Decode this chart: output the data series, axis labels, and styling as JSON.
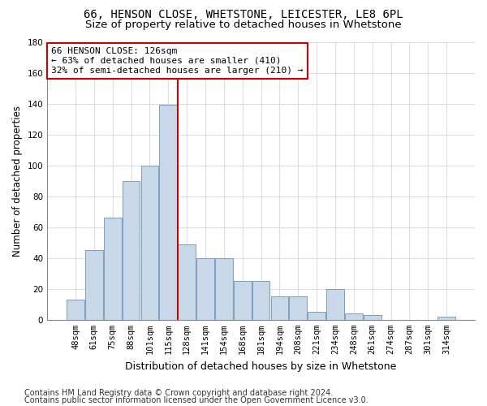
{
  "title_line1": "66, HENSON CLOSE, WHETSTONE, LEICESTER, LE8 6PL",
  "title_line2": "Size of property relative to detached houses in Whetstone",
  "xlabel": "Distribution of detached houses by size in Whetstone",
  "ylabel": "Number of detached properties",
  "categories": [
    "48sqm",
    "61sqm",
    "75sqm",
    "88sqm",
    "101sqm",
    "115sqm",
    "128sqm",
    "141sqm",
    "154sqm",
    "168sqm",
    "181sqm",
    "194sqm",
    "208sqm",
    "221sqm",
    "234sqm",
    "248sqm",
    "261sqm",
    "274sqm",
    "287sqm",
    "301sqm",
    "314sqm"
  ],
  "values": [
    13,
    45,
    66,
    90,
    100,
    139,
    49,
    40,
    40,
    25,
    25,
    15,
    15,
    5,
    20,
    4,
    3,
    0,
    0,
    0,
    2
  ],
  "bar_color": "#c8d8e8",
  "bar_edge_color": "#7a9fc0",
  "vline_x_idx": 6,
  "vline_color": "#cc0000",
  "annotation_text": "66 HENSON CLOSE: 126sqm\n← 63% of detached houses are smaller (410)\n32% of semi-detached houses are larger (210) →",
  "annotation_box_color": "#ffffff",
  "annotation_box_edge": "#cc0000",
  "ylim": [
    0,
    180
  ],
  "yticks": [
    0,
    20,
    40,
    60,
    80,
    100,
    120,
    140,
    160,
    180
  ],
  "footer_line1": "Contains HM Land Registry data © Crown copyright and database right 2024.",
  "footer_line2": "Contains public sector information licensed under the Open Government Licence v3.0.",
  "bg_color": "#ffffff",
  "grid_color": "#d0d8e0",
  "title1_fontsize": 10,
  "title2_fontsize": 9.5,
  "xlabel_fontsize": 9,
  "ylabel_fontsize": 8.5,
  "tick_fontsize": 7.5,
  "annot_fontsize": 8,
  "footer_fontsize": 7
}
